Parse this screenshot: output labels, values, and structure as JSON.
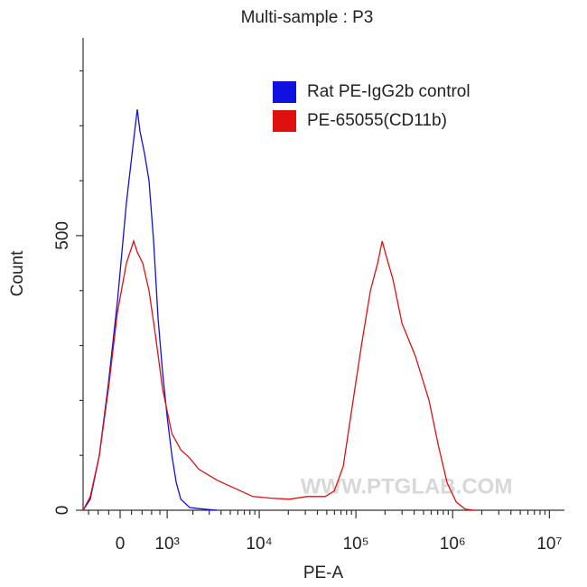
{
  "chart_data": {
    "type": "histogram-overlay",
    "title": "Multi-sample : P3",
    "xlabel": "PE-A",
    "ylabel": "Count",
    "watermark": "WWW.PTGLAB.COM",
    "xscale": "biexponential",
    "xlim": [
      -730,
      14300000
    ],
    "xticks": [
      0,
      {
        "value": 1000,
        "label": "10³"
      },
      {
        "value": 10000,
        "label": "10⁴"
      },
      {
        "value": 100000,
        "label": "10⁵"
      },
      {
        "value": 1000000,
        "label": "10⁶"
      },
      {
        "value": 10000000,
        "label": "10⁷"
      }
    ],
    "xminor": [
      -600,
      -400,
      -200,
      200,
      400,
      600,
      800,
      2000,
      3000,
      4000,
      5000,
      6000,
      7000,
      8000,
      9000,
      20000,
      30000,
      40000,
      50000,
      60000,
      70000,
      80000,
      90000,
      200000,
      300000,
      400000,
      500000,
      600000,
      700000,
      800000,
      900000,
      2000000,
      3000000,
      4000000,
      5000000,
      6000000,
      7000000,
      8000000,
      9000000
    ],
    "ylim": [
      0,
      860
    ],
    "yticks": [
      0,
      500
    ],
    "yminor": [
      100,
      200,
      300,
      400,
      600,
      700,
      800
    ],
    "legend": "top-right",
    "series": [
      {
        "name": "Rat PE-IgG2b control",
        "color": "#1010e0",
        "x": [
          -730,
          -563,
          -376,
          -207,
          -47,
          110,
          223,
          307,
          358,
          448,
          543,
          645,
          753,
          871,
          1000,
          1143,
          1295,
          1461,
          1845,
          2309,
          3606
        ],
        "values": [
          0,
          20,
          100,
          230,
          380,
          560,
          660,
          730,
          690,
          650,
          600,
          490,
          350,
          250,
          170,
          100,
          50,
          20,
          5,
          3,
          0
        ]
      },
      {
        "name": "PE-65055(CD11b)",
        "color": "#e01010",
        "x": [
          -730,
          -563,
          -376,
          -207,
          -47,
          110,
          240,
          307,
          412,
          543,
          687,
          871,
          1143,
          1461,
          1845,
          2309,
          3606,
          5577,
          8592,
          13220,
          20360,
          31310,
          48130,
          59700,
          74000,
          91800,
          113900,
          141300,
          167700,
          186900,
          208000,
          242000,
          300000,
          413000,
          570000,
          707000,
          877000,
          1088000,
          1350000,
          1674000
        ],
        "values": [
          0,
          25,
          100,
          220,
          360,
          450,
          490,
          470,
          450,
          400,
          320,
          220,
          140,
          110,
          95,
          75,
          55,
          40,
          25,
          22,
          20,
          25,
          25,
          35,
          80,
          190,
          300,
          400,
          450,
          490,
          460,
          420,
          340,
          280,
          200,
          120,
          50,
          15,
          2,
          0
        ]
      }
    ]
  }
}
